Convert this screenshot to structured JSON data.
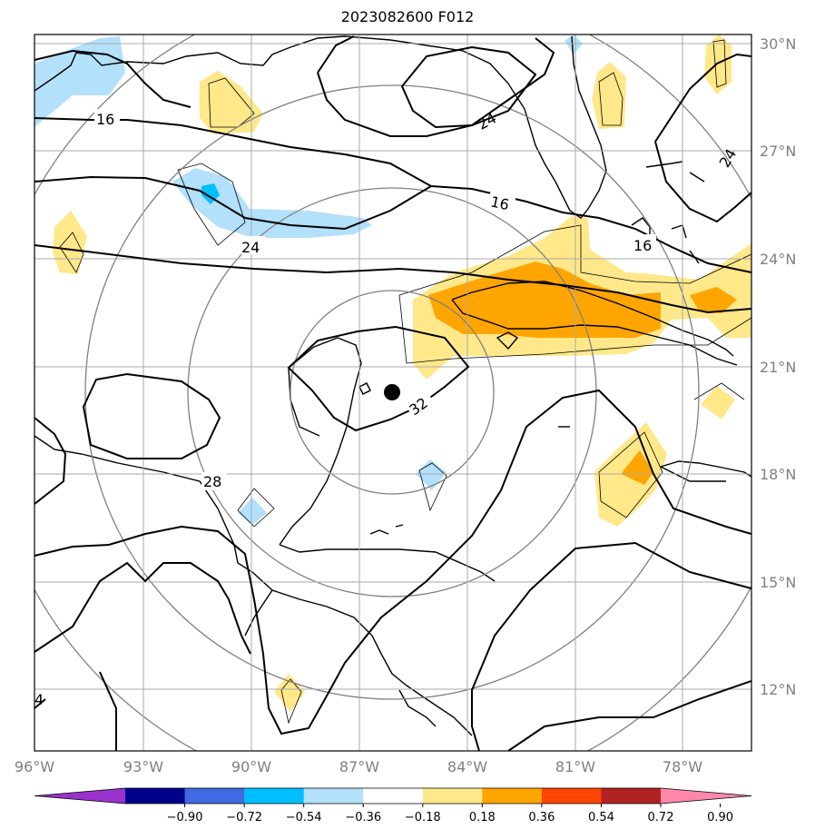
{
  "title": "2023082600 F012",
  "lat_labels": [
    "30°N",
    "27°N",
    "24°N",
    "21°N",
    "18°N",
    "15°N",
    "12°N"
  ],
  "lon_labels": [
    "96°W",
    "93°W",
    "90°W",
    "87°W",
    "84°W",
    "81°W",
    "78°W"
  ],
  "colorbar": {
    "ticks": [
      "−0.90",
      "−0.72",
      "−0.54",
      "−0.36",
      "−0.18",
      "0.18",
      "0.36",
      "0.54",
      "0.72",
      "0.90"
    ],
    "colors": [
      "#9932cc",
      "#00008b",
      "#4169e1",
      "#00bfff",
      "#b3e0fa",
      "#ffffff",
      "#ffe88a",
      "#ffa500",
      "#ff4500",
      "#b22222",
      "#ff88aa"
    ]
  },
  "contour_labels": [
    "16",
    "24",
    "16",
    "16",
    "24",
    "24",
    "32",
    "28",
    "4"
  ],
  "storm_marker": "storm-center"
}
